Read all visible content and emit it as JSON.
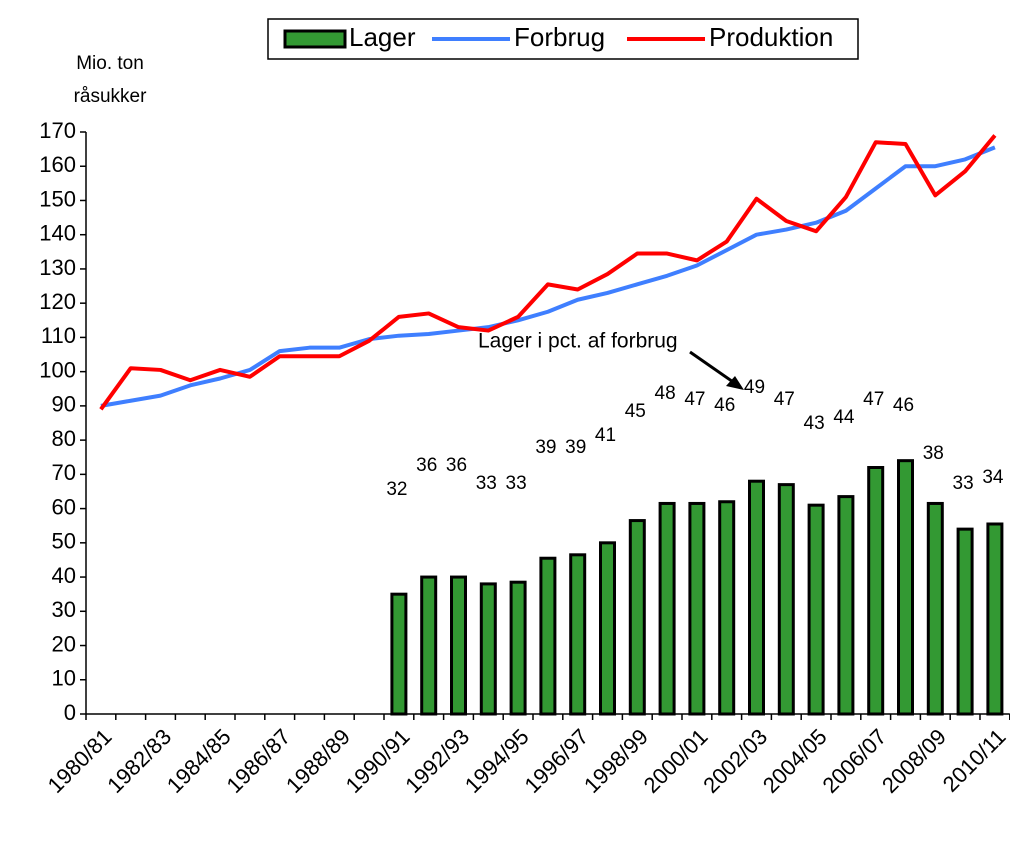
{
  "chart_data": {
    "type": "bar",
    "ylabel": [
      "Mio. ton",
      "råsukker"
    ],
    "categories": [
      "1980/81",
      null,
      "1982/83",
      null,
      "1984/85",
      null,
      "1986/87",
      null,
      "1988/89",
      null,
      "1990/91",
      null,
      "1992/93",
      null,
      "1994/95",
      null,
      "1996/97",
      null,
      "1998/99",
      null,
      "2000/01",
      null,
      "2002/03",
      null,
      "2004/05",
      null,
      "2006/07",
      null,
      "2008/09",
      null,
      "2010/11"
    ],
    "series": [
      {
        "name": "Lager",
        "type": "bar",
        "color": "#339933",
        "values": [
          null,
          null,
          null,
          null,
          null,
          null,
          null,
          null,
          null,
          null,
          35,
          40,
          40,
          38,
          38.5,
          45.5,
          46.5,
          50,
          56.5,
          61.5,
          61.5,
          62,
          68,
          67,
          61,
          63.5,
          72,
          74,
          61.5,
          54,
          55.5
        ]
      },
      {
        "name": "Forbrug",
        "type": "line",
        "color": "#3f7fff",
        "values": [
          90,
          91.5,
          93,
          96,
          98,
          100.5,
          106,
          107,
          107,
          109.5,
          110.5,
          111,
          112,
          113,
          115,
          117.5,
          121,
          123,
          125.5,
          128,
          131,
          135.5,
          140,
          141.5,
          143.5,
          147,
          153.5,
          160,
          160,
          162,
          165.5
        ]
      },
      {
        "name": "Produktion",
        "type": "line",
        "color": "#ff0000",
        "values": [
          89,
          101,
          100.5,
          97.5,
          100.5,
          98.5,
          104.5,
          104.5,
          104.5,
          109,
          116,
          117,
          113,
          112,
          116,
          125.5,
          124,
          128.5,
          134.5,
          134.5,
          132.5,
          138,
          150.5,
          144,
          141,
          151,
          167,
          166.5,
          151.5,
          158.5,
          169
        ]
      }
    ],
    "stock_pct": {
      "label": "Lager i pct. af forbrug",
      "values": [
        null,
        null,
        null,
        null,
        null,
        null,
        null,
        null,
        null,
        null,
        32,
        36,
        36,
        33,
        33,
        39,
        39,
        41,
        45,
        48,
        47,
        46,
        49,
        47,
        43,
        44,
        47,
        46,
        38,
        33,
        34
      ]
    },
    "ylim": [
      0,
      170
    ],
    "yticks": [
      0,
      10,
      20,
      30,
      40,
      50,
      60,
      70,
      80,
      90,
      100,
      110,
      120,
      130,
      140,
      150,
      160,
      170
    ],
    "legend": "top"
  }
}
